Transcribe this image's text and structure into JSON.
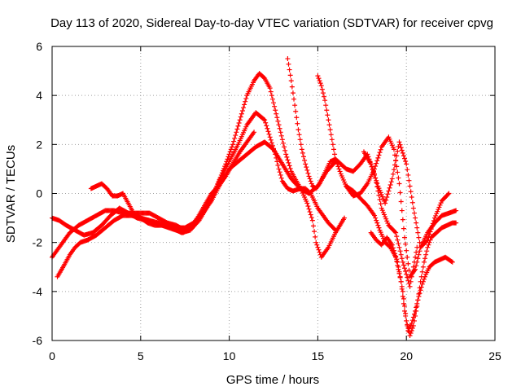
{
  "chart_data": {
    "type": "scatter",
    "title": "Day 113 of 2020, Sidereal Day-to-day VTEC variation (SDTVAR) for receiver cpvg",
    "xlabel": "GPS time / hours",
    "ylabel": "SDTVAR / TECUs",
    "xlim": [
      0,
      25
    ],
    "ylim": [
      -6,
      6
    ],
    "x_ticks": [
      0,
      5,
      10,
      15,
      20,
      25
    ],
    "y_ticks": [
      -6,
      -4,
      -2,
      0,
      2,
      4,
      6
    ],
    "grid": true,
    "legend": "none",
    "marker": "+",
    "color": "#ff0000",
    "series": [
      {
        "x": [
          0.0,
          0.5,
          1.0,
          1.5,
          2.0,
          2.5,
          3.0,
          3.5,
          4.0,
          4.5,
          5.0,
          5.5,
          6.0,
          6.5,
          7.0,
          7.5,
          8.0,
          8.5,
          9.0,
          9.5,
          10.0,
          10.5,
          11.0,
          11.5,
          12.0,
          12.3,
          12.6,
          12.8,
          13.0,
          13.3,
          13.6,
          14.0,
          14.3,
          14.6,
          14.8,
          15.0,
          15.3,
          15.6,
          16.0
        ],
        "y": [
          -2.6,
          -2.1,
          -1.6,
          -1.3,
          -1.1,
          -0.9,
          -0.7,
          -0.7,
          -0.8,
          -0.8,
          -0.8,
          -0.8,
          -1.0,
          -1.2,
          -1.3,
          -1.5,
          -1.2,
          -0.8,
          -0.2,
          0.6,
          1.3,
          2.0,
          2.8,
          3.3,
          3.0,
          2.3,
          1.6,
          1.0,
          0.5,
          0.2,
          0.1,
          0.2,
          0.2,
          0.0,
          -0.3,
          -0.6,
          -0.9,
          -1.2,
          -1.5
        ]
      },
      {
        "x": [
          0.0,
          0.4,
          0.8,
          1.3,
          1.8,
          2.3,
          2.8,
          3.3,
          3.8,
          4.3,
          4.8,
          5.3,
          5.8,
          6.3,
          6.8,
          7.3,
          7.8,
          8.3,
          8.8,
          9.3,
          9.8,
          10.2,
          10.6,
          11.0,
          11.4,
          11.7,
          12.0,
          12.3,
          12.6,
          12.9,
          13.2,
          13.5,
          13.8,
          14.1,
          14.4,
          14.7,
          14.9,
          15.2,
          15.6,
          16.0,
          16.5
        ],
        "y": [
          -1.0,
          -1.1,
          -1.3,
          -1.5,
          -1.7,
          -1.6,
          -1.3,
          -0.9,
          -0.6,
          -0.8,
          -1.0,
          -1.1,
          -1.2,
          -1.3,
          -1.4,
          -1.6,
          -1.5,
          -1.1,
          -0.5,
          0.3,
          1.2,
          2.0,
          3.0,
          4.0,
          4.6,
          4.9,
          4.7,
          4.3,
          3.4,
          2.5,
          1.6,
          0.9,
          0.5,
          0.1,
          -0.4,
          -1.1,
          -2.0,
          -2.6,
          -2.2,
          -1.6,
          -1.0
        ]
      },
      {
        "x": [
          0.3,
          0.7,
          1.0,
          1.3,
          1.6,
          2.0,
          2.5,
          3.0,
          3.5,
          4.0,
          4.5,
          5.0,
          5.5,
          6.0,
          6.5,
          7.0,
          7.5,
          8.0,
          8.5,
          9.0,
          9.5,
          10.0,
          10.5,
          11.0,
          11.5,
          12.0,
          12.5,
          13.0,
          13.5,
          14.0,
          14.5,
          15.0,
          15.5,
          16.0
        ],
        "y": [
          -3.4,
          -2.9,
          -2.5,
          -2.2,
          -2.0,
          -1.9,
          -1.7,
          -1.4,
          -1.1,
          -0.9,
          -0.9,
          -1.0,
          -1.1,
          -1.2,
          -1.3,
          -1.4,
          -1.4,
          -1.2,
          -0.8,
          -0.3,
          0.4,
          1.0,
          1.3,
          1.6,
          1.9,
          2.1,
          1.8,
          1.2,
          0.6,
          0.2,
          0.0,
          0.3,
          0.9,
          1.3
        ]
      },
      {
        "x": [
          2.2,
          2.5,
          2.8,
          3.1,
          3.4,
          3.7,
          4.0,
          4.3,
          4.6,
          5.0,
          5.4,
          5.8,
          6.2,
          6.6,
          7.0,
          7.4,
          7.8,
          8.2,
          8.6,
          9.0,
          9.4,
          9.8,
          10.2,
          10.6,
          11.0,
          11.4
        ],
        "y": [
          0.2,
          0.3,
          0.4,
          0.2,
          -0.1,
          -0.1,
          0.0,
          -0.4,
          -0.8,
          -1.0,
          -1.2,
          -1.3,
          -1.3,
          -1.4,
          -1.5,
          -1.6,
          -1.4,
          -1.0,
          -0.5,
          0.0,
          0.3,
          0.7,
          1.2,
          1.7,
          2.1,
          2.5
        ]
      },
      {
        "x": [
          13.3,
          13.5,
          13.7,
          13.9,
          14.1,
          14.3,
          14.5,
          14.7,
          14.9,
          15.1,
          15.3,
          15.5,
          15.7,
          16.0,
          16.3,
          16.6,
          17.0,
          17.4,
          17.8,
          18.2,
          18.6,
          19.0,
          19.4,
          19.8,
          20.2,
          20.6
        ],
        "y": [
          5.5,
          4.6,
          3.6,
          2.6,
          1.8,
          1.2,
          0.7,
          0.3,
          0.2,
          0.4,
          0.7,
          1.0,
          1.3,
          1.4,
          1.2,
          1.0,
          0.9,
          1.2,
          1.6,
          0.8,
          -0.6,
          -1.3,
          -1.6,
          -2.8,
          -3.8,
          -2.2
        ]
      },
      {
        "x": [
          15.0,
          15.2,
          15.4,
          15.6,
          15.8,
          16.0,
          16.3,
          16.6,
          17.0,
          17.4,
          17.8,
          18.2,
          18.6,
          19.0,
          19.3,
          19.6,
          19.9,
          20.2,
          20.5,
          20.8,
          21.2,
          21.6,
          22.0,
          22.4,
          22.8
        ],
        "y": [
          4.8,
          4.4,
          3.8,
          3.0,
          2.2,
          1.4,
          0.8,
          0.3,
          -0.1,
          0.0,
          0.4,
          1.0,
          1.9,
          2.3,
          1.8,
          0.4,
          -1.8,
          -3.4,
          -3.1,
          -2.2,
          -1.6,
          -1.2,
          -0.9,
          -0.8,
          -0.7
        ]
      },
      {
        "x": [
          16.6,
          17.0,
          17.4,
          17.8,
          18.2,
          18.5,
          18.8,
          19.1,
          19.4,
          19.7,
          19.9,
          20.1,
          20.3,
          20.5,
          20.7,
          20.9,
          21.1,
          21.3,
          21.6,
          21.9,
          22.2,
          22.6
        ],
        "y": [
          0.3,
          0.1,
          -0.2,
          -0.5,
          -0.9,
          -1.5,
          -2.0,
          -2.2,
          -2.6,
          -3.6,
          -4.8,
          -5.6,
          -5.3,
          -4.8,
          -4.2,
          -3.7,
          -3.3,
          -3.0,
          -2.8,
          -2.7,
          -2.6,
          -2.8
        ]
      },
      {
        "x": [
          18.0,
          18.3,
          18.6,
          18.9,
          19.2,
          19.5,
          19.8,
          20.0,
          20.2,
          20.4,
          20.6,
          20.8,
          21.0,
          21.2,
          21.4,
          21.7,
          22.0,
          22.3,
          22.6,
          22.8
        ],
        "y": [
          -1.6,
          -1.9,
          -2.1,
          -1.8,
          -2.1,
          -2.8,
          -4.0,
          -5.2,
          -5.8,
          -5.4,
          -4.6,
          -3.6,
          -2.8,
          -2.2,
          -1.8,
          -1.6,
          -1.4,
          -1.3,
          -1.2,
          -1.2
        ]
      },
      {
        "x": [
          17.6,
          18.0,
          18.4,
          18.8,
          19.2,
          19.6,
          20.0,
          20.4,
          20.8,
          21.2,
          21.6,
          22.0,
          22.4
        ],
        "y": [
          1.7,
          1.2,
          0.3,
          -0.4,
          0.6,
          2.1,
          1.2,
          -0.6,
          -2.2,
          -1.9,
          -1.0,
          -0.3,
          0.0
        ]
      }
    ]
  }
}
